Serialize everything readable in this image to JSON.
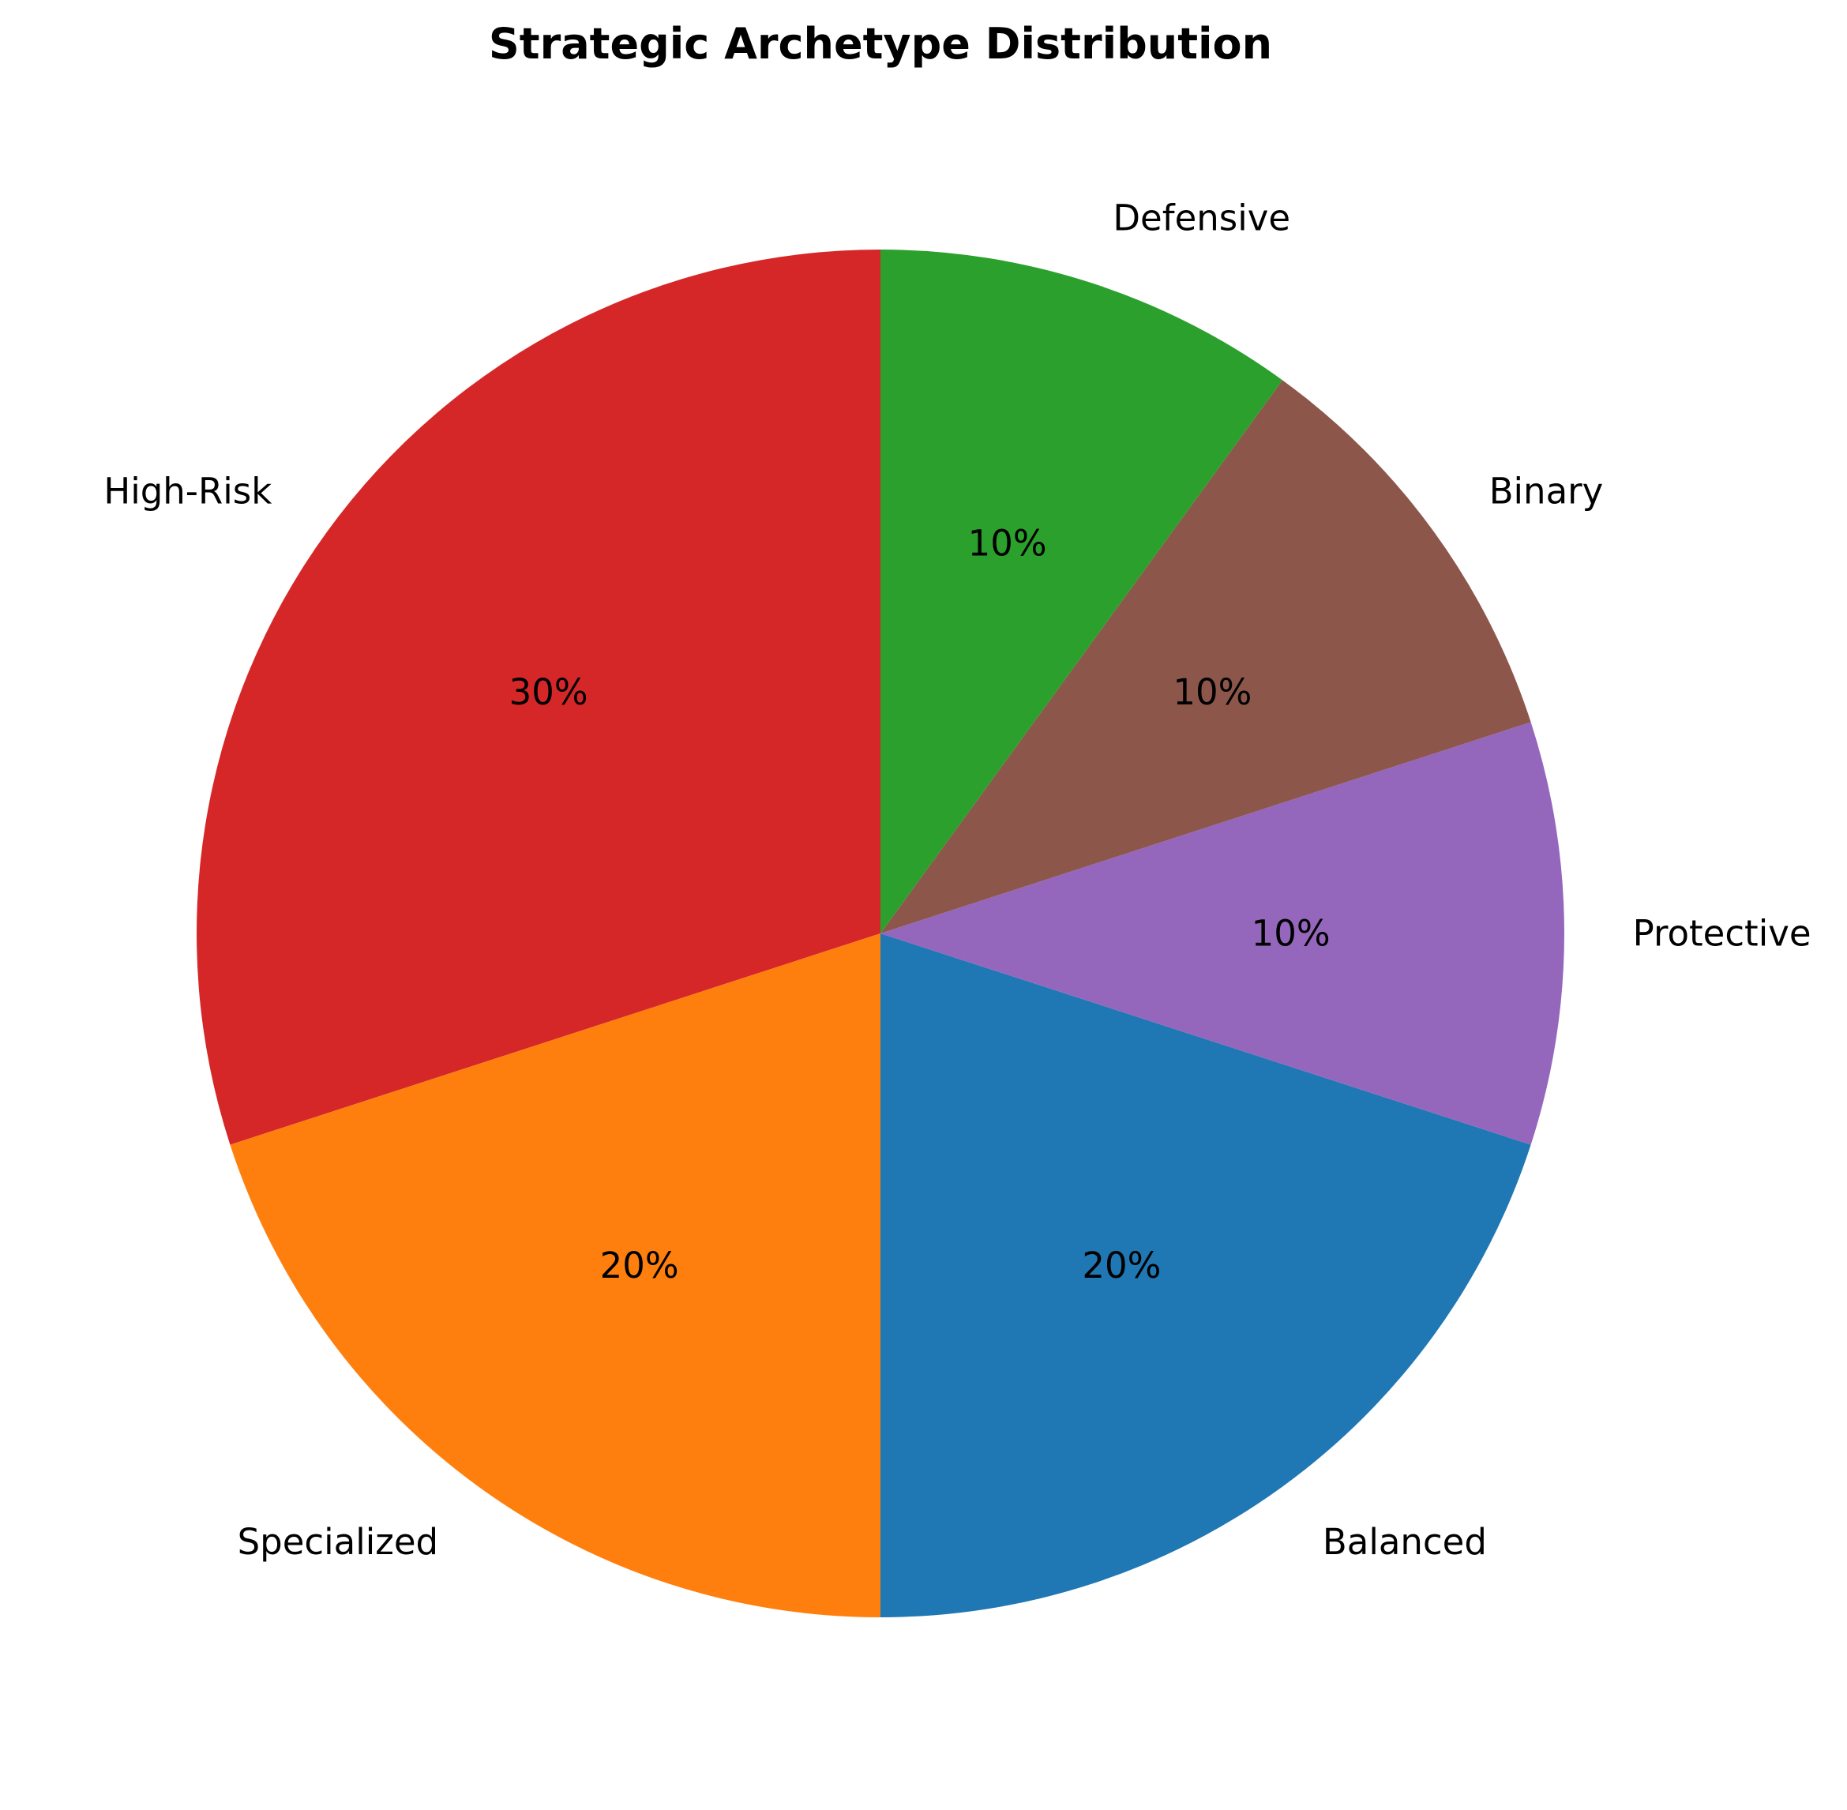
{
  "chart_data": {
    "type": "pie",
    "title": "Strategic Archetype Distribution",
    "slices": [
      {
        "label": "Balanced",
        "value": 20,
        "pct_label": "20%",
        "color": "#1f77b4"
      },
      {
        "label": "Protective",
        "value": 10,
        "pct_label": "10%",
        "color": "#9467bd"
      },
      {
        "label": "Binary",
        "value": 10,
        "pct_label": "10%",
        "color": "#8c564b"
      },
      {
        "label": "Defensive",
        "value": 10,
        "pct_label": "10%",
        "color": "#2ca02c"
      },
      {
        "label": "High-Risk",
        "value": 30,
        "pct_label": "30%",
        "color": "#d62728"
      },
      {
        "label": "Specialized",
        "value": 20,
        "pct_label": "20%",
        "color": "#ff7f0e"
      }
    ],
    "start_angle_deg": 270,
    "direction": "counterclockwise",
    "legend": "none"
  }
}
